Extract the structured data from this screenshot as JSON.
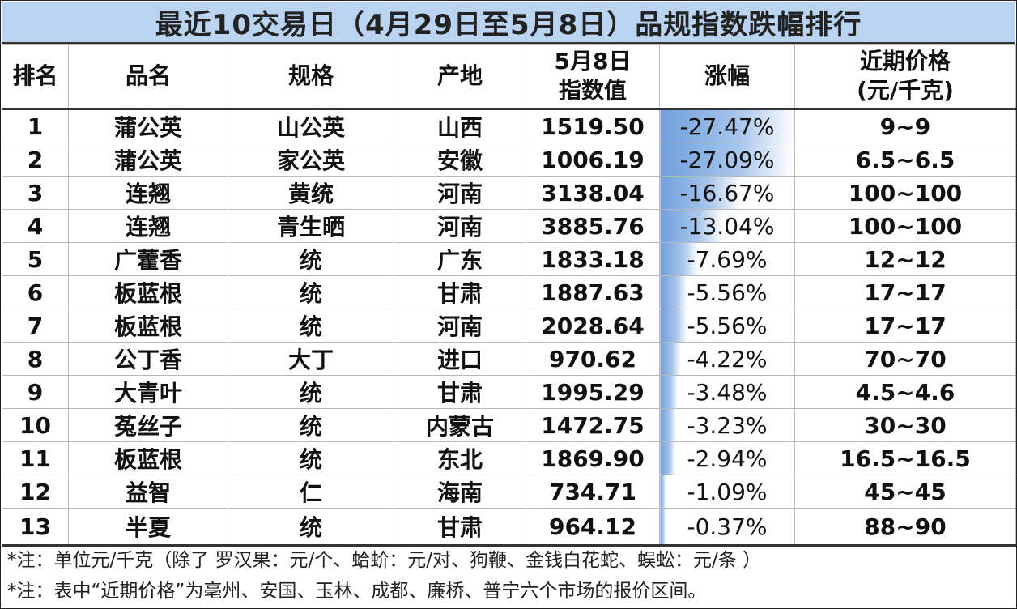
{
  "title": "最近10交易日（4月29日至5月8日）品规指数跌幅排行",
  "headers": {
    "rank": "排名",
    "name": "品名",
    "spec": "规格",
    "origin": "产地",
    "index_line1": "5月8日",
    "index_line2": "指数值",
    "change": "涨幅",
    "price_line1": "近期价格",
    "price_line2": "(元/千克)"
  },
  "rows": [
    {
      "rank": "1",
      "name": "蒲公英",
      "spec": "山公英",
      "origin": "山西",
      "index": "1519.50",
      "change": "-27.47%",
      "change_value": -27.47,
      "price": "9~9"
    },
    {
      "rank": "2",
      "name": "蒲公英",
      "spec": "家公英",
      "origin": "安徽",
      "index": "1006.19",
      "change": "-27.09%",
      "change_value": -27.09,
      "price": "6.5~6.5"
    },
    {
      "rank": "3",
      "name": "连翘",
      "spec": "黄统",
      "origin": "河南",
      "index": "3138.04",
      "change": "-16.67%",
      "change_value": -16.67,
      "price": "100~100"
    },
    {
      "rank": "4",
      "name": "连翘",
      "spec": "青生晒",
      "origin": "河南",
      "index": "3885.76",
      "change": "-13.04%",
      "change_value": -13.04,
      "price": "100~100"
    },
    {
      "rank": "5",
      "name": "广藿香",
      "spec": "统",
      "origin": "广东",
      "index": "1833.18",
      "change": "-7.69%",
      "change_value": -7.69,
      "price": "12~12"
    },
    {
      "rank": "6",
      "name": "板蓝根",
      "spec": "统",
      "origin": "甘肃",
      "index": "1887.63",
      "change": "-5.56%",
      "change_value": -5.56,
      "price": "17~17"
    },
    {
      "rank": "7",
      "name": "板蓝根",
      "spec": "统",
      "origin": "河南",
      "index": "2028.64",
      "change": "-5.56%",
      "change_value": -5.56,
      "price": "17~17"
    },
    {
      "rank": "8",
      "name": "公丁香",
      "spec": "大丁",
      "origin": "进口",
      "index": "970.62",
      "change": "-4.22%",
      "change_value": -4.22,
      "price": "70~70"
    },
    {
      "rank": "9",
      "name": "大青叶",
      "spec": "统",
      "origin": "甘肃",
      "index": "1995.29",
      "change": "-3.48%",
      "change_value": -3.48,
      "price": "4.5~4.6"
    },
    {
      "rank": "10",
      "name": "菟丝子",
      "spec": "统",
      "origin": "内蒙古",
      "index": "1472.75",
      "change": "-3.23%",
      "change_value": -3.23,
      "price": "30~30"
    },
    {
      "rank": "11",
      "name": "板蓝根",
      "spec": "统",
      "origin": "东北",
      "index": "1869.90",
      "change": "-2.94%",
      "change_value": -2.94,
      "price": "16.5~16.5"
    },
    {
      "rank": "12",
      "name": "益智",
      "spec": "仁",
      "origin": "海南",
      "index": "734.71",
      "change": "-1.09%",
      "change_value": -1.09,
      "price": "45~45"
    },
    {
      "rank": "13",
      "name": "半夏",
      "spec": "统",
      "origin": "甘肃",
      "index": "964.12",
      "change": "-0.37%",
      "change_value": -0.37,
      "price": "88~90"
    }
  ],
  "notes": [
    "*注：单位元/千克（除了 罗汉果：元/个、蛤蚧：元/对、狗鞭、金钱白花蛇、蜈蚣：元/条 ）",
    "*注：表中“近期价格”为亳州、安国、玉林、成都、廉桥、普宁六个市场的报价区间。"
  ],
  "colors": {
    "title_bg": "#b9d3f0",
    "change_gradient_strong": "#6f9fdc",
    "change_gradient_weak": "#ffffff"
  }
}
